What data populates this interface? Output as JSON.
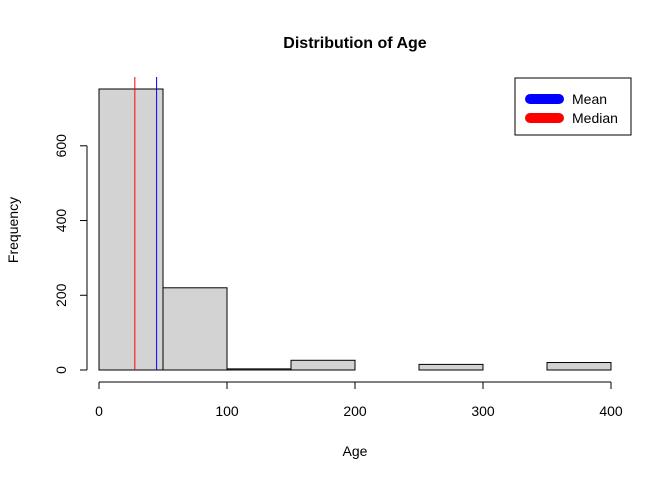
{
  "chart_data": {
    "type": "bar",
    "title": "Distribution of Age",
    "xlabel": "Age",
    "ylabel": "Frequency",
    "bins": [
      {
        "start": 0,
        "end": 50,
        "count": 752
      },
      {
        "start": 50,
        "end": 100,
        "count": 220
      },
      {
        "start": 100,
        "end": 150,
        "count": 3
      },
      {
        "start": 150,
        "end": 200,
        "count": 26
      },
      {
        "start": 200,
        "end": 250,
        "count": 0
      },
      {
        "start": 250,
        "end": 300,
        "count": 15
      },
      {
        "start": 300,
        "end": 350,
        "count": 0
      },
      {
        "start": 350,
        "end": 400,
        "count": 20
      }
    ],
    "x_ticks": [
      0,
      100,
      200,
      300,
      400
    ],
    "y_ticks": [
      0,
      200,
      400,
      600
    ],
    "xlim": [
      0,
      400
    ],
    "ylim": [
      0,
      752
    ],
    "reference_lines": [
      {
        "name": "Mean",
        "value": 45,
        "color": "#0000ff"
      },
      {
        "name": "Median",
        "value": 28,
        "color": "#ff0000"
      }
    ],
    "bar_color": "#d3d3d3",
    "legend": {
      "position": "top-right",
      "entries": [
        {
          "label": "Mean",
          "color": "#0000ff"
        },
        {
          "label": "Median",
          "color": "#ff0000"
        }
      ]
    },
    "grid": false
  }
}
